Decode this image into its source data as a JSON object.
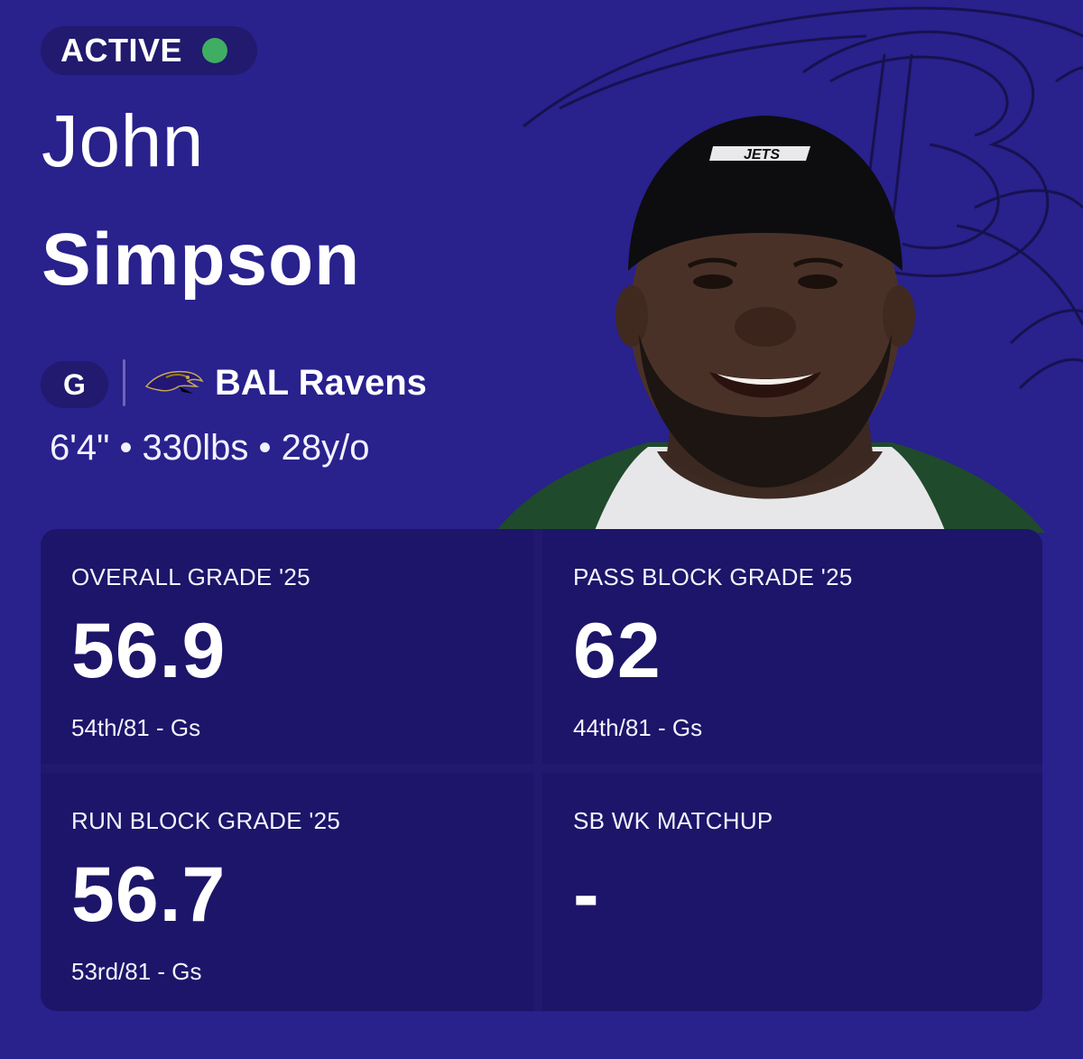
{
  "status": {
    "label": "ACTIVE",
    "dot_color": "#3fae62"
  },
  "player": {
    "first_name": "John",
    "last_name": "Simpson",
    "position": "G",
    "team": "BAL Ravens",
    "bio": "6'4\" • 330lbs • 28y/o",
    "headshot_cap_text": "JETS"
  },
  "colors": {
    "background": "#29218c",
    "card": "#1d1569",
    "accent": "#3fae62"
  },
  "stats": [
    {
      "label": "OVERALL GRADE '25",
      "value": "56.9",
      "rank": "54th/81 - Gs"
    },
    {
      "label": "PASS BLOCK GRADE '25",
      "value": "62",
      "rank": "44th/81 - Gs"
    },
    {
      "label": "RUN BLOCK GRADE '25",
      "value": "56.7",
      "rank": "53rd/81 - Gs"
    },
    {
      "label": "SB WK MATCHUP",
      "value": "-",
      "rank": ""
    }
  ]
}
